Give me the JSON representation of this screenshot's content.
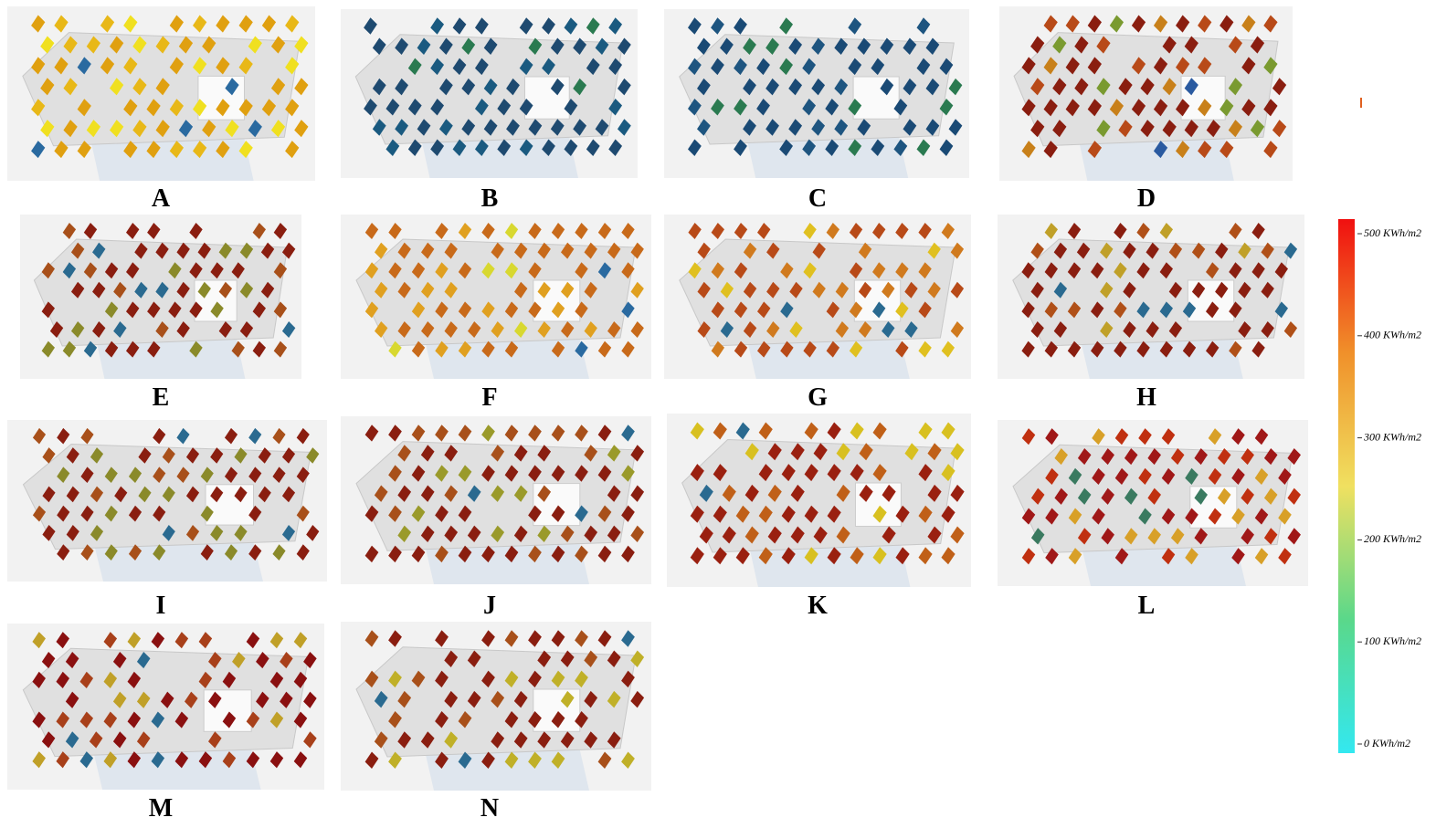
{
  "panels": [
    {
      "label": "A",
      "palette": [
        "#e0a010",
        "#e8b818",
        "#f0e020",
        "#2a6aa0"
      ]
    },
    {
      "label": "B",
      "palette": [
        "#1e4a70",
        "#1a5a80",
        "#2a7a50"
      ]
    },
    {
      "label": "C",
      "palette": [
        "#1a4a75",
        "#1e5580",
        "#2a7a50"
      ]
    },
    {
      "label": "D",
      "palette": [
        "#8a1e10",
        "#b84a18",
        "#c8801a",
        "#7a9a30",
        "#2a5aa0"
      ]
    },
    {
      "label": "E",
      "palette": [
        "#8a1e10",
        "#a8501a",
        "#8a8a2a",
        "#2a6a90"
      ]
    },
    {
      "label": "F",
      "palette": [
        "#c86a1a",
        "#e0a020",
        "#d8d830",
        "#2a6aa0"
      ]
    },
    {
      "label": "G",
      "palette": [
        "#b84a18",
        "#d07a1e",
        "#e0c020",
        "#2a6a90"
      ]
    },
    {
      "label": "H",
      "palette": [
        "#8a1e10",
        "#b05018",
        "#c0a028",
        "#2a6a90"
      ]
    },
    {
      "label": "I",
      "palette": [
        "#8a1e10",
        "#a8501a",
        "#8a8a2a",
        "#2a6a90"
      ]
    },
    {
      "label": "J",
      "palette": [
        "#8a1e10",
        "#a8501a",
        "#9a9a2a",
        "#2a6a90"
      ]
    },
    {
      "label": "K",
      "palette": [
        "#9a2010",
        "#c06018",
        "#d8c020",
        "#2a6a90"
      ]
    },
    {
      "label": "L",
      "palette": [
        "#a01818",
        "#c03010",
        "#d8a028",
        "#3a7a60"
      ]
    },
    {
      "label": "M",
      "palette": [
        "#8a1010",
        "#a8401a",
        "#c0a028",
        "#2a6a90"
      ]
    },
    {
      "label": "N",
      "palette": [
        "#8a1e10",
        "#a8501a",
        "#c0b028",
        "#2a6a90"
      ]
    }
  ],
  "colorbar": {
    "range": [
      0,
      500
    ],
    "colors": [
      "#33e8f0",
      "#5ad88a",
      "#f0e060",
      "#f0902a",
      "#f01010"
    ],
    "ticks": [
      {
        "value": 500,
        "label": "500 KWh/m2"
      },
      {
        "value": 400,
        "label": "400 KWh/m2"
      },
      {
        "value": 300,
        "label": "300 KWh/m2"
      },
      {
        "value": 200,
        "label": "200 KWh/m2"
      },
      {
        "value": 100,
        "label": "100 KWh/m2"
      },
      {
        "value": 0,
        "label": "0 KWh/m2"
      }
    ]
  }
}
